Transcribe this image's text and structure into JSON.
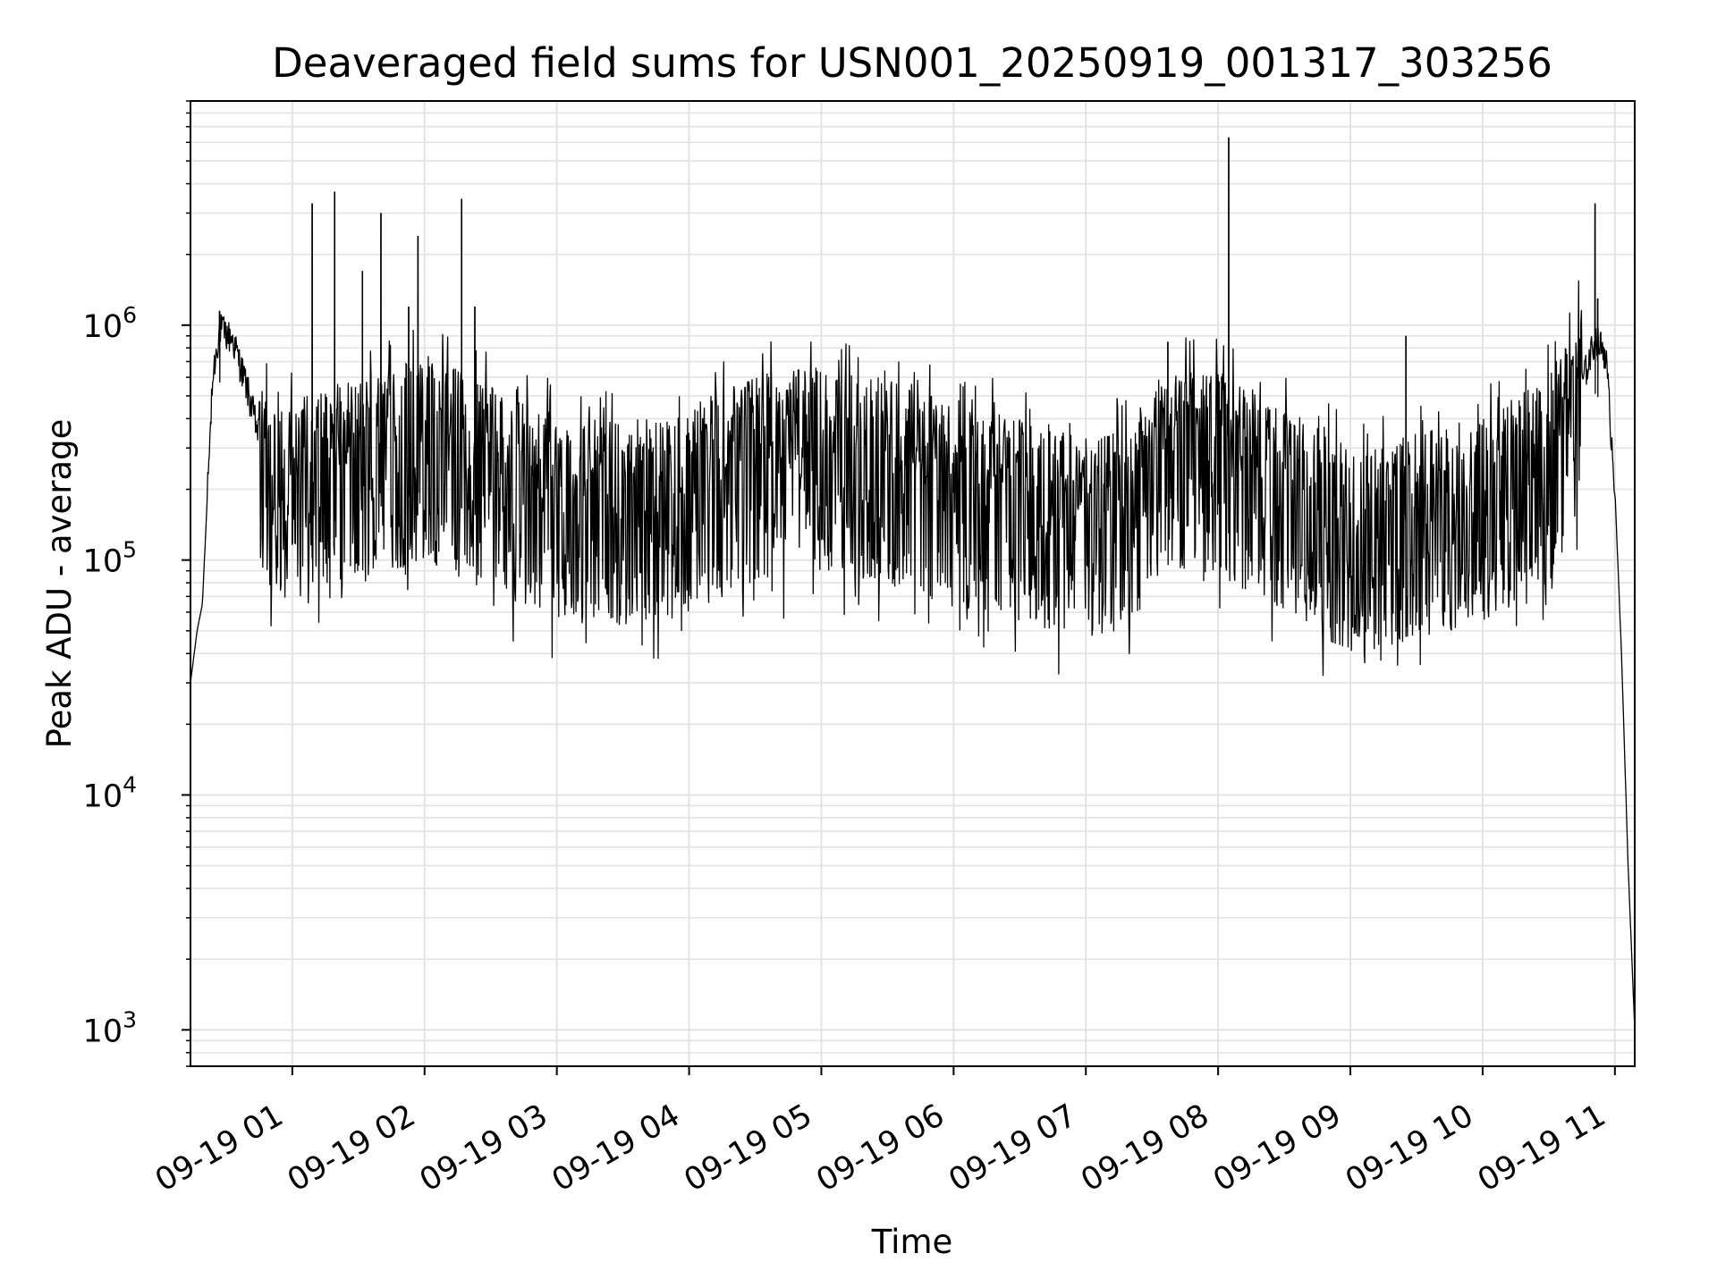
{
  "chart_data": {
    "type": "line",
    "title": "Deaveraged field sums for USN001_20250919_001317_303256",
    "xlabel": "Time",
    "ylabel": "Peak ADU - average",
    "yscale": "log",
    "ylim": [
      700,
      9000000
    ],
    "xlim_hours": [
      0.23,
      11.15
    ],
    "grid": true,
    "x_ticks": [
      {
        "label": "09-19 01",
        "hour": 1
      },
      {
        "label": "09-19 02",
        "hour": 2
      },
      {
        "label": "09-19 03",
        "hour": 3
      },
      {
        "label": "09-19 04",
        "hour": 4
      },
      {
        "label": "09-19 05",
        "hour": 5
      },
      {
        "label": "09-19 06",
        "hour": 6
      },
      {
        "label": "09-19 07",
        "hour": 7
      },
      {
        "label": "09-19 08",
        "hour": 8
      },
      {
        "label": "09-19 09",
        "hour": 9
      },
      {
        "label": "09-19 10",
        "hour": 10
      },
      {
        "label": "09-19 11",
        "hour": 11
      }
    ],
    "y_ticks": [
      {
        "base": "10",
        "exp": "3",
        "value": 1000
      },
      {
        "base": "10",
        "exp": "4",
        "value": 10000
      },
      {
        "base": "10",
        "exp": "5",
        "value": 100000
      },
      {
        "base": "10",
        "exp": "6",
        "value": 1000000
      }
    ],
    "series": [
      {
        "name": "field sum",
        "color": "#000000",
        "envelope": [
          {
            "hour": 0.23,
            "value": 30000
          },
          {
            "hour": 0.28,
            "value": 50000
          },
          {
            "hour": 0.32,
            "value": 65000
          },
          {
            "hour": 0.36,
            "value": 200000
          },
          {
            "hour": 0.4,
            "value": 600000
          },
          {
            "hour": 0.45,
            "value": 950000
          },
          {
            "hour": 0.55,
            "value": 850000
          },
          {
            "hour": 0.65,
            "value": 550000
          },
          {
            "hour": 0.8,
            "value": 250000
          },
          {
            "hour": 1.0,
            "value": 220000
          },
          {
            "hour": 1.5,
            "value": 260000
          },
          {
            "hour": 2.0,
            "value": 330000
          },
          {
            "hour": 2.5,
            "value": 240000
          },
          {
            "hour": 3.0,
            "value": 180000
          },
          {
            "hour": 3.5,
            "value": 170000
          },
          {
            "hour": 4.0,
            "value": 190000
          },
          {
            "hour": 4.5,
            "value": 270000
          },
          {
            "hour": 5.0,
            "value": 290000
          },
          {
            "hour": 5.5,
            "value": 260000
          },
          {
            "hour": 6.0,
            "value": 200000
          },
          {
            "hour": 6.5,
            "value": 180000
          },
          {
            "hour": 7.0,
            "value": 150000
          },
          {
            "hour": 7.3,
            "value": 160000
          },
          {
            "hour": 7.6,
            "value": 280000
          },
          {
            "hour": 8.0,
            "value": 280000
          },
          {
            "hour": 8.5,
            "value": 200000
          },
          {
            "hour": 9.0,
            "value": 130000
          },
          {
            "hour": 9.5,
            "value": 150000
          },
          {
            "hour": 10.0,
            "value": 180000
          },
          {
            "hour": 10.5,
            "value": 260000
          },
          {
            "hour": 10.75,
            "value": 550000
          },
          {
            "hour": 10.85,
            "value": 850000
          },
          {
            "hour": 10.93,
            "value": 750000
          },
          {
            "hour": 11.0,
            "value": 200000
          },
          {
            "hour": 11.05,
            "value": 40000
          },
          {
            "hour": 11.1,
            "value": 5000
          },
          {
            "hour": 11.15,
            "value": 1000
          }
        ],
        "spikes": [
          {
            "hour": 0.45,
            "value": 1150000
          },
          {
            "hour": 1.15,
            "value": 3300000
          },
          {
            "hour": 1.32,
            "value": 3700000
          },
          {
            "hour": 1.53,
            "value": 1700000
          },
          {
            "hour": 1.67,
            "value": 3000000
          },
          {
            "hour": 1.88,
            "value": 1200000
          },
          {
            "hour": 1.95,
            "value": 2400000
          },
          {
            "hour": 2.28,
            "value": 3450000
          },
          {
            "hour": 2.38,
            "value": 1200000
          },
          {
            "hour": 7.62,
            "value": 850000
          },
          {
            "hour": 8.08,
            "value": 6300000
          },
          {
            "hour": 9.42,
            "value": 900000
          },
          {
            "hour": 10.85,
            "value": 3300000
          },
          {
            "hour": 10.87,
            "value": 1300000
          }
        ]
      }
    ]
  }
}
